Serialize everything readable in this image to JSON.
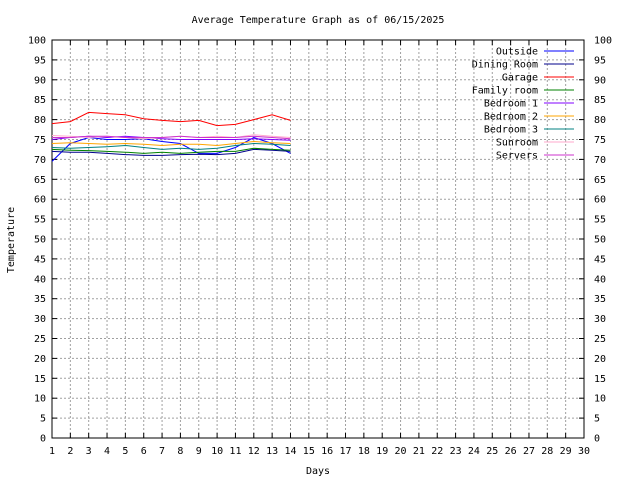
{
  "chart_data": {
    "type": "line",
    "title": "Average Temperature Graph as of 06/15/2025",
    "xlabel": "Days",
    "ylabel": "Temperature",
    "xlim": [
      1,
      30
    ],
    "ylim": [
      0,
      100
    ],
    "xticks": [
      1,
      2,
      3,
      4,
      5,
      6,
      7,
      8,
      9,
      10,
      11,
      12,
      13,
      14,
      15,
      16,
      17,
      18,
      19,
      20,
      21,
      22,
      23,
      24,
      25,
      26,
      27,
      28,
      29,
      30
    ],
    "yticks": [
      0,
      5,
      10,
      15,
      20,
      25,
      30,
      35,
      40,
      45,
      50,
      55,
      60,
      65,
      70,
      75,
      80,
      85,
      90,
      95,
      100
    ],
    "grid": true,
    "legend_position": "top-right",
    "x": [
      1,
      2,
      3,
      4,
      5,
      6,
      7,
      8,
      9,
      10,
      11,
      12,
      13,
      14
    ],
    "series": [
      {
        "name": "Outside",
        "color": "#0000ff",
        "values": [
          69.5,
          74.0,
          75.5,
          75.0,
          75.0,
          75.2,
          74.5,
          74.0,
          71.5,
          71.5,
          73.0,
          75.5,
          74.0,
          71.5
        ]
      },
      {
        "name": "Dining Room",
        "color": "#00008b",
        "values": [
          72.0,
          71.8,
          71.8,
          71.5,
          71.2,
          71.0,
          71.0,
          71.2,
          71.3,
          71.2,
          71.5,
          72.5,
          72.3,
          72.0
        ]
      },
      {
        "name": "Garage",
        "color": "#ff0000",
        "values": [
          79.0,
          79.5,
          81.8,
          81.5,
          81.2,
          80.2,
          79.8,
          79.5,
          79.8,
          78.5,
          78.8,
          80.0,
          81.2,
          79.8
        ]
      },
      {
        "name": "Family room",
        "color": "#008000",
        "values": [
          72.5,
          72.3,
          72.2,
          72.0,
          71.8,
          71.5,
          71.8,
          71.5,
          71.8,
          72.0,
          72.0,
          72.8,
          72.5,
          72.3
        ]
      },
      {
        "name": "Bedroom 1",
        "color": "#8000ff",
        "values": [
          75.0,
          75.5,
          75.8,
          75.5,
          75.8,
          75.5,
          75.2,
          75.0,
          75.0,
          75.0,
          75.0,
          75.2,
          75.0,
          74.8
        ]
      },
      {
        "name": "Bedroom 2",
        "color": "#ffa500",
        "values": [
          74.0,
          74.2,
          74.0,
          73.8,
          74.0,
          73.8,
          73.5,
          73.8,
          73.8,
          73.5,
          74.0,
          74.5,
          74.2,
          74.0
        ]
      },
      {
        "name": "Bedroom 3",
        "color": "#008080",
        "values": [
          73.0,
          72.8,
          73.0,
          73.2,
          73.5,
          73.0,
          72.5,
          72.8,
          72.5,
          72.8,
          73.5,
          74.0,
          73.8,
          73.5
        ]
      },
      {
        "name": "Sunroom",
        "color": "#ffaacc",
        "values": [
          76.0,
          75.8,
          75.5,
          75.8,
          75.5,
          75.2,
          75.5,
          75.8,
          75.5,
          75.8,
          75.5,
          76.2,
          75.8,
          75.5
        ]
      },
      {
        "name": "Servers",
        "color": "#cc33cc",
        "values": [
          75.5,
          75.5,
          75.8,
          75.8,
          75.5,
          75.5,
          75.5,
          75.8,
          75.5,
          75.5,
          75.5,
          75.8,
          75.5,
          75.2
        ]
      }
    ]
  }
}
